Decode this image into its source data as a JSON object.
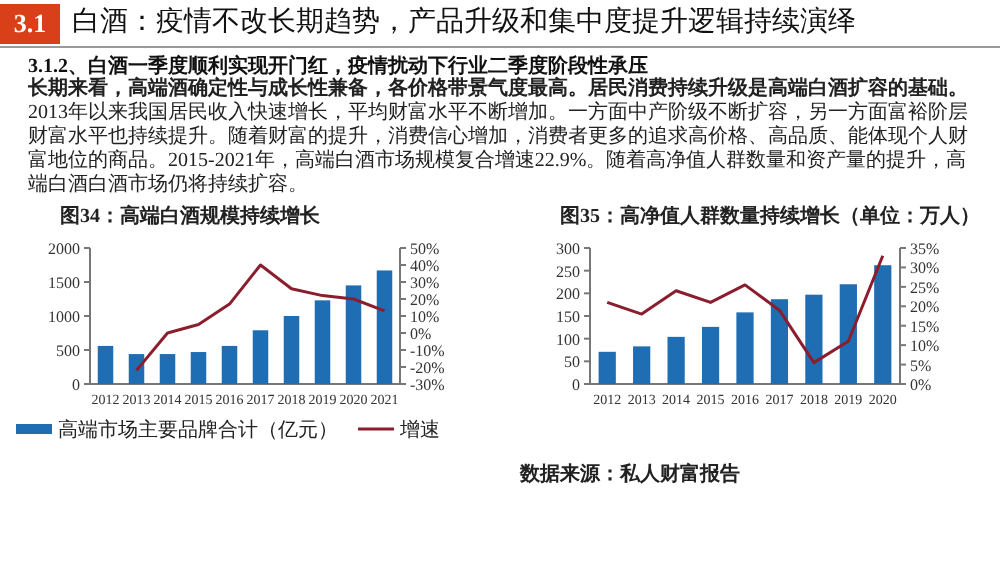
{
  "chart_data": [
    {
      "type": "other",
      "title": "3.1",
      "subtitle": "白酒：疫情不改长期趋势，产品升级和集中度提升逻辑持续演绎",
      "annotations": [
        "3.1.2、白酒一季度顺利实现开门红，疫情扰动下行业二季度阶段性承压",
        "长期来看，高端酒确定性与成长性兼备，各价格带景气度最高。居民消费持续升级是高端白酒扩容的基础。",
        "2013年以来我国居民收入快速增长，平均财富水平不断增加。一方面中产阶级不断扩容，另一方面富裕阶层财富水平也持续提升。随着财富的提升，消费信心增加，消费者更多的追求高价格、高品质、能体现个人财富地位的商品。2015-2021年，高端白酒市场规模复合增速22.9%。随着高净值人群数量和资产量的提升，高端白酒白酒市场仍将持续扩容。"
      ]
    },
    {
      "type": "bar",
      "title": "图34：高端白酒规模持续增长",
      "categories": [
        "2012",
        "2013",
        "2014",
        "2015",
        "2016",
        "2017",
        "2018",
        "2019",
        "2020",
        "2021"
      ],
      "series": [
        {
          "name": "高端市场主要品牌合计（亿元）",
          "type": "bar",
          "color": "#1f6db3",
          "values": [
            560,
            440,
            440,
            470,
            560,
            790,
            1000,
            1230,
            1450,
            1670
          ]
        },
        {
          "name": "增速",
          "type": "line",
          "axis": "y2",
          "color": "#8b1e2e",
          "values": [
            null,
            -22,
            0,
            5,
            17,
            40,
            26,
            22,
            20,
            13
          ]
        }
      ],
      "ylim": [
        0,
        2000
      ],
      "yticks": [
        0,
        500,
        1000,
        1500,
        2000
      ],
      "y2lim": [
        -30,
        50
      ],
      "y2ticks": [
        {
          "value": -30,
          "label": "-30%"
        },
        {
          "value": -20,
          "label": "-20%"
        },
        {
          "value": -10,
          "label": "-10%"
        },
        {
          "value": 0,
          "label": "0%"
        },
        {
          "value": 10,
          "label": "10%"
        },
        {
          "value": 20,
          "label": "20%"
        },
        {
          "value": 30,
          "label": "30%"
        },
        {
          "value": 40,
          "label": "40%"
        },
        {
          "value": 50,
          "label": "50%"
        }
      ],
      "legend": "bottom"
    },
    {
      "type": "bar",
      "title": "图35：高净值人群数量持续增长（单位：万人）",
      "categories": [
        "2012",
        "2013",
        "2014",
        "2015",
        "2016",
        "2017",
        "2018",
        "2019",
        "2020"
      ],
      "series": [
        {
          "type": "bar",
          "color": "#1f6db3",
          "values": [
            71,
            83,
            104,
            126,
            158,
            187,
            197,
            220,
            262
          ]
        },
        {
          "type": "line",
          "axis": "y2",
          "color": "#8b1e2e",
          "values": [
            21,
            18,
            24,
            21,
            25.5,
            19,
            5.5,
            11,
            33
          ]
        }
      ],
      "ylim": [
        0,
        300
      ],
      "yticks": [
        0,
        50,
        100,
        150,
        200,
        250,
        300
      ],
      "y2lim": [
        0,
        35
      ],
      "y2ticks": [
        {
          "value": 0,
          "label": "0%"
        },
        {
          "value": 5,
          "label": "5%"
        },
        {
          "value": 10,
          "label": "10%"
        },
        {
          "value": 15,
          "label": "15%"
        },
        {
          "value": 20,
          "label": "20%"
        },
        {
          "value": 25,
          "label": "25%"
        },
        {
          "value": 30,
          "label": "30%"
        },
        {
          "value": 35,
          "label": "35%"
        }
      ],
      "annotations": [
        "数据来源：私人财富报告"
      ]
    }
  ]
}
